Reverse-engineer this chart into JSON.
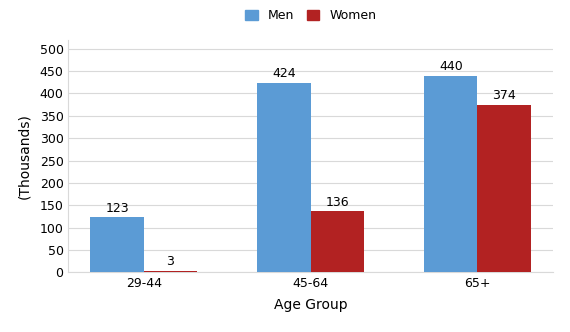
{
  "categories": [
    "29-44",
    "45-64",
    "65+"
  ],
  "men_values": [
    123,
    424,
    440
  ],
  "women_values": [
    3,
    136,
    374
  ],
  "men_color": "#5B9BD5",
  "women_color": "#B22222",
  "xlabel": "Age Group",
  "ylabel": "(Thousands)",
  "ylim": [
    0,
    520
  ],
  "yticks": [
    0,
    50,
    100,
    150,
    200,
    250,
    300,
    350,
    400,
    450,
    500
  ],
  "legend_men": "Men",
  "legend_women": "Women",
  "bar_width": 0.32,
  "grid_color": "#D9D9D9",
  "background_color": "#FFFFFF",
  "label_fontsize": 9,
  "axis_fontsize": 10,
  "tick_fontsize": 9,
  "legend_fontsize": 9
}
